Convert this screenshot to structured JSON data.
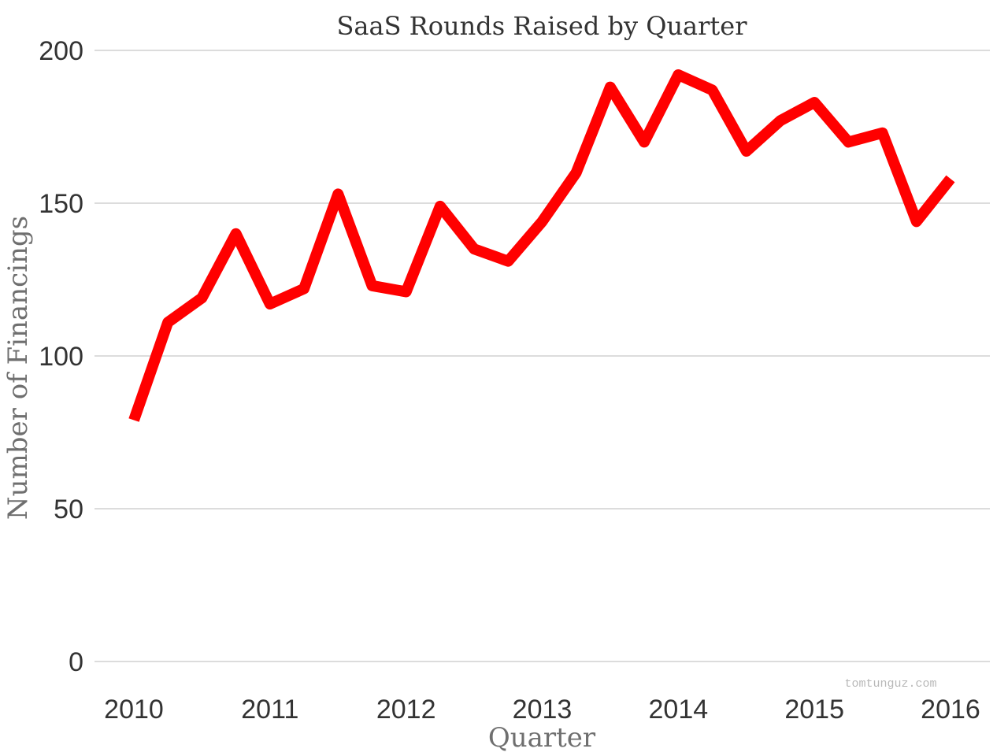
{
  "chart_data": {
    "type": "line",
    "title": "SaaS Rounds Raised by Quarter",
    "xlabel": "Quarter",
    "ylabel": "Number of Financings",
    "x": [
      2010.0,
      2010.25,
      2010.5,
      2010.75,
      2011.0,
      2011.25,
      2011.5,
      2011.75,
      2012.0,
      2012.25,
      2012.5,
      2012.75,
      2013.0,
      2013.25,
      2013.5,
      2013.75,
      2014.0,
      2014.25,
      2014.5,
      2014.75,
      2015.0,
      2015.25,
      2015.5,
      2015.75,
      2016.0
    ],
    "xticks": [
      2010,
      2011,
      2012,
      2013,
      2014,
      2015,
      2016
    ],
    "xlim": [
      2010,
      2016
    ],
    "ylim": [
      0,
      200
    ],
    "yticks": [
      0,
      50,
      100,
      150,
      200
    ],
    "grid": true,
    "series": [
      {
        "color": "#ff0000",
        "values": [
          79,
          111,
          119,
          140,
          117,
          122,
          153,
          123,
          121,
          149,
          135,
          131,
          144,
          160,
          188,
          170,
          192,
          187,
          167,
          177,
          183,
          170,
          173,
          144,
          158
        ]
      }
    ]
  },
  "watermark": "tomtunguz.com"
}
